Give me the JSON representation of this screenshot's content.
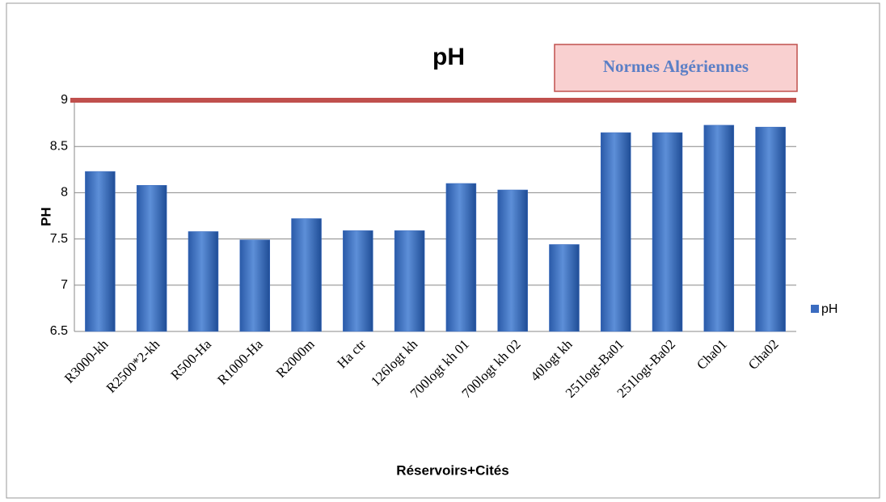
{
  "chart_data": {
    "type": "bar",
    "title": "pH",
    "x_label": "Réservoirs+Cités",
    "y_label": "PH",
    "categories": [
      "R3000-kh",
      "R2500*2-kh",
      "R500-Ha",
      "R1000-Ha",
      "R2000m",
      "Ha ctr",
      "126logt kh",
      "700logt kh 01",
      "700logt kh 02",
      "40logt kh",
      "251logt-Ba01",
      "251logt-Ba02",
      "Cha01",
      "Cha02"
    ],
    "series": [
      {
        "name": "pH",
        "color": "#3b6cc0",
        "values": [
          8.23,
          8.08,
          7.58,
          7.49,
          7.72,
          7.59,
          7.59,
          8.1,
          8.03,
          7.44,
          8.65,
          8.65,
          8.73,
          8.71
        ]
      }
    ],
    "ylim": [
      6.5,
      9
    ],
    "yticks": [
      6.5,
      7,
      7.5,
      8,
      8.5,
      9
    ],
    "grid": true,
    "legend": "right",
    "reference_line": {
      "label": "Normes Algériennes",
      "value": 9,
      "color": "#c0504d"
    }
  }
}
